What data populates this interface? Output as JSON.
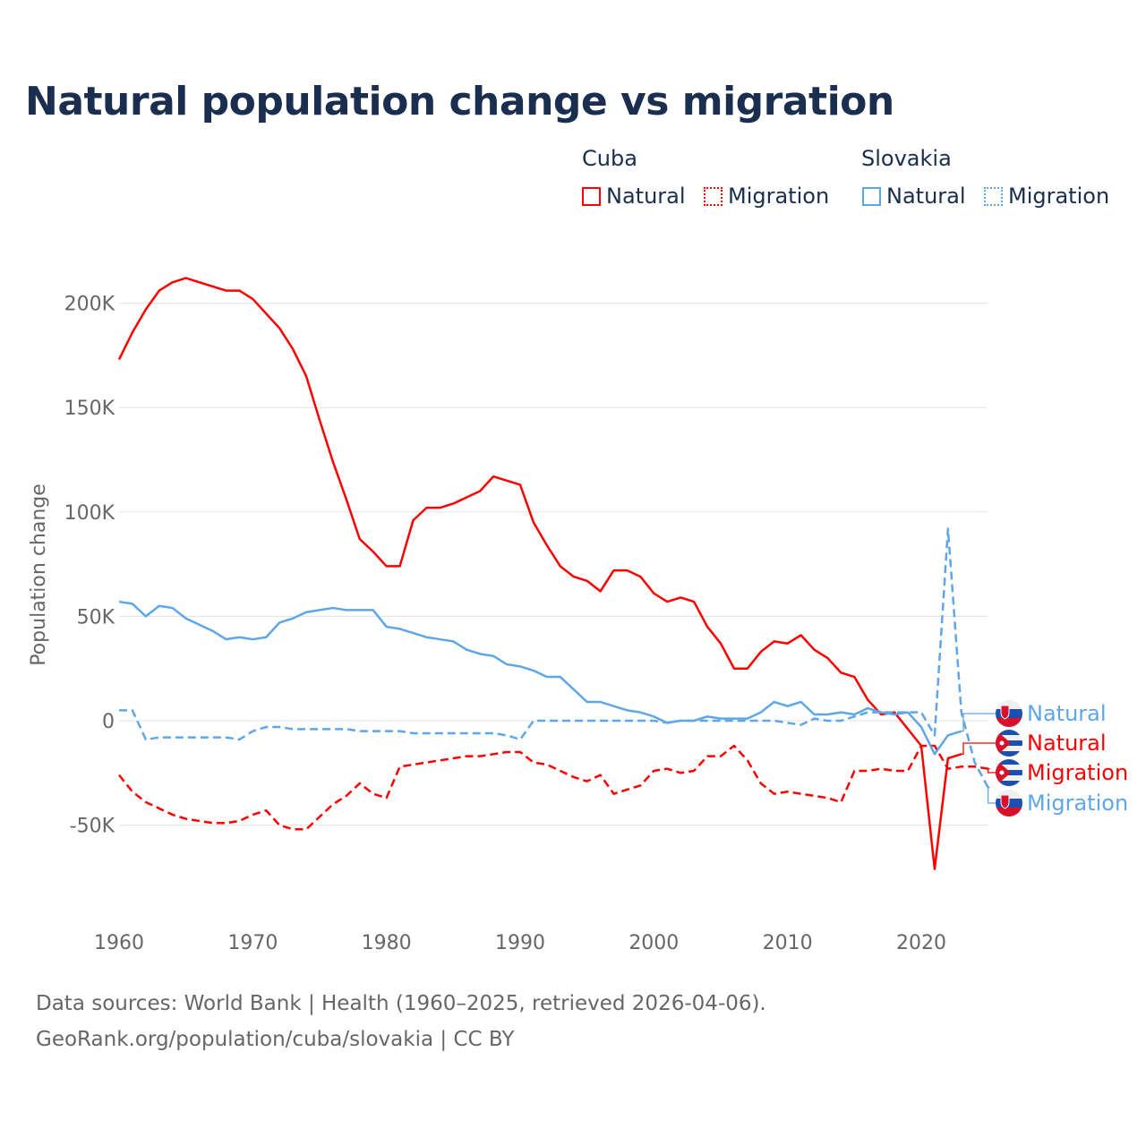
{
  "title": "Natural population change vs migration",
  "legend": {
    "groups": [
      {
        "name": "Cuba",
        "items": [
          "Natural",
          "Migration"
        ]
      },
      {
        "name": "Slovakia",
        "items": [
          "Natural",
          "Migration"
        ]
      }
    ]
  },
  "footer": {
    "line1": "Data sources: World Bank | Health (1960–2025, retrieved 2026-04-06).",
    "line2": "GeoRank.org/population/cuba/slovakia | CC BY"
  },
  "colors": {
    "cuba": "#ff0000",
    "slovakia": "#5fa6e8",
    "title": "#1a2e4f",
    "grid": "#e6e6e6"
  },
  "chart_data": {
    "type": "line",
    "title": "Natural population change vs migration",
    "xlabel": "",
    "ylabel": "Population change",
    "xlim": [
      1960,
      2025
    ],
    "ylim": [
      -80000,
      230000
    ],
    "grid": true,
    "legend_position": "top-right",
    "x_ticks": [
      1960,
      1970,
      1980,
      1990,
      2000,
      2010,
      2020
    ],
    "y_ticks": [
      {
        "v": -50000,
        "label": "-50K"
      },
      {
        "v": 0,
        "label": "0"
      },
      {
        "v": 50000,
        "label": "50K"
      },
      {
        "v": 100000,
        "label": "100K"
      },
      {
        "v": 150000,
        "label": "150K"
      },
      {
        "v": 200000,
        "label": "200K"
      }
    ],
    "start_year": 1960,
    "series": [
      {
        "name": "Cuba Natural",
        "country": "Cuba",
        "kind": "Natural",
        "label": "Natural",
        "color": "#ff0000",
        "dash": false,
        "flag": "cuba",
        "values_k": [
          173,
          186,
          197,
          206,
          210,
          212,
          210,
          208,
          206,
          206,
          202,
          195,
          188,
          178,
          165,
          144,
          124,
          106,
          87,
          81,
          74,
          74,
          96,
          102,
          102,
          104,
          107,
          110,
          117,
          115,
          113,
          95,
          84,
          74,
          69,
          67,
          62,
          72,
          72,
          69,
          61,
          57,
          59,
          57,
          45,
          37,
          25,
          25,
          33,
          38,
          37,
          41,
          34,
          30,
          23,
          21,
          10,
          3,
          4,
          -4,
          -12,
          -71,
          -18,
          -16
        ]
      },
      {
        "name": "Cuba Migration",
        "country": "Cuba",
        "kind": "Migration",
        "label": "Migration",
        "color": "#ff0000",
        "dash": true,
        "flag": "cuba",
        "values_k": [
          -26,
          -34,
          -39,
          -42,
          -45,
          -47,
          -48,
          -49,
          -49,
          -48,
          -45,
          -43,
          -50,
          -52,
          -52,
          -46,
          -40,
          -36,
          -30,
          -35,
          -37,
          -22,
          -21,
          -20,
          -19,
          -18,
          -17,
          -17,
          -16,
          -15,
          -15,
          -20,
          -21,
          -24,
          -27,
          -29,
          -26,
          -35,
          -33,
          -31,
          -24,
          -23,
          -25,
          -24,
          -17,
          -17,
          -12,
          -19,
          -30,
          -35,
          -34,
          -35,
          -36,
          -37,
          -39,
          -24,
          -24,
          -23,
          -24,
          -24,
          -12,
          -12,
          -23,
          -22,
          -22,
          -23
        ]
      },
      {
        "name": "Slovakia Natural",
        "country": "Slovakia",
        "kind": "Natural",
        "label": "Natural",
        "color": "#5fa6e8",
        "dash": false,
        "flag": "slovakia",
        "values_k": [
          57,
          56,
          50,
          55,
          54,
          49,
          46,
          43,
          39,
          40,
          39,
          40,
          47,
          49,
          52,
          53,
          54,
          53,
          53,
          53,
          45,
          44,
          42,
          40,
          39,
          38,
          34,
          32,
          31,
          27,
          26,
          24,
          21,
          21,
          15,
          9,
          9,
          7,
          5,
          4,
          2,
          -1,
          0,
          0,
          2,
          1,
          1,
          1,
          4,
          9,
          7,
          9,
          3,
          3,
          4,
          3,
          6,
          4,
          3,
          4,
          -3,
          -16,
          -7,
          -5
        ]
      },
      {
        "name": "Slovakia Migration",
        "country": "Slovakia",
        "kind": "Migration",
        "label": "Migration",
        "color": "#5fa6e8",
        "dash": true,
        "flag": "slovakia",
        "values_k": [
          5,
          5,
          -9,
          -8,
          -8,
          -8,
          -8,
          -8,
          -8,
          -9,
          -5,
          -3,
          -3,
          -4,
          -4,
          -4,
          -4,
          -4,
          -5,
          -5,
          -5,
          -5,
          -6,
          -6,
          -6,
          -6,
          -6,
          -6,
          -6,
          -7,
          -9,
          0,
          0,
          0,
          0,
          0,
          0,
          0,
          0,
          0,
          0,
          -1,
          0,
          0,
          0,
          0,
          0,
          0,
          0,
          0,
          -1,
          -2,
          1,
          0,
          0,
          2,
          4,
          4,
          4,
          4,
          4,
          -7,
          92,
          4,
          -20,
          -32
        ]
      }
    ]
  }
}
